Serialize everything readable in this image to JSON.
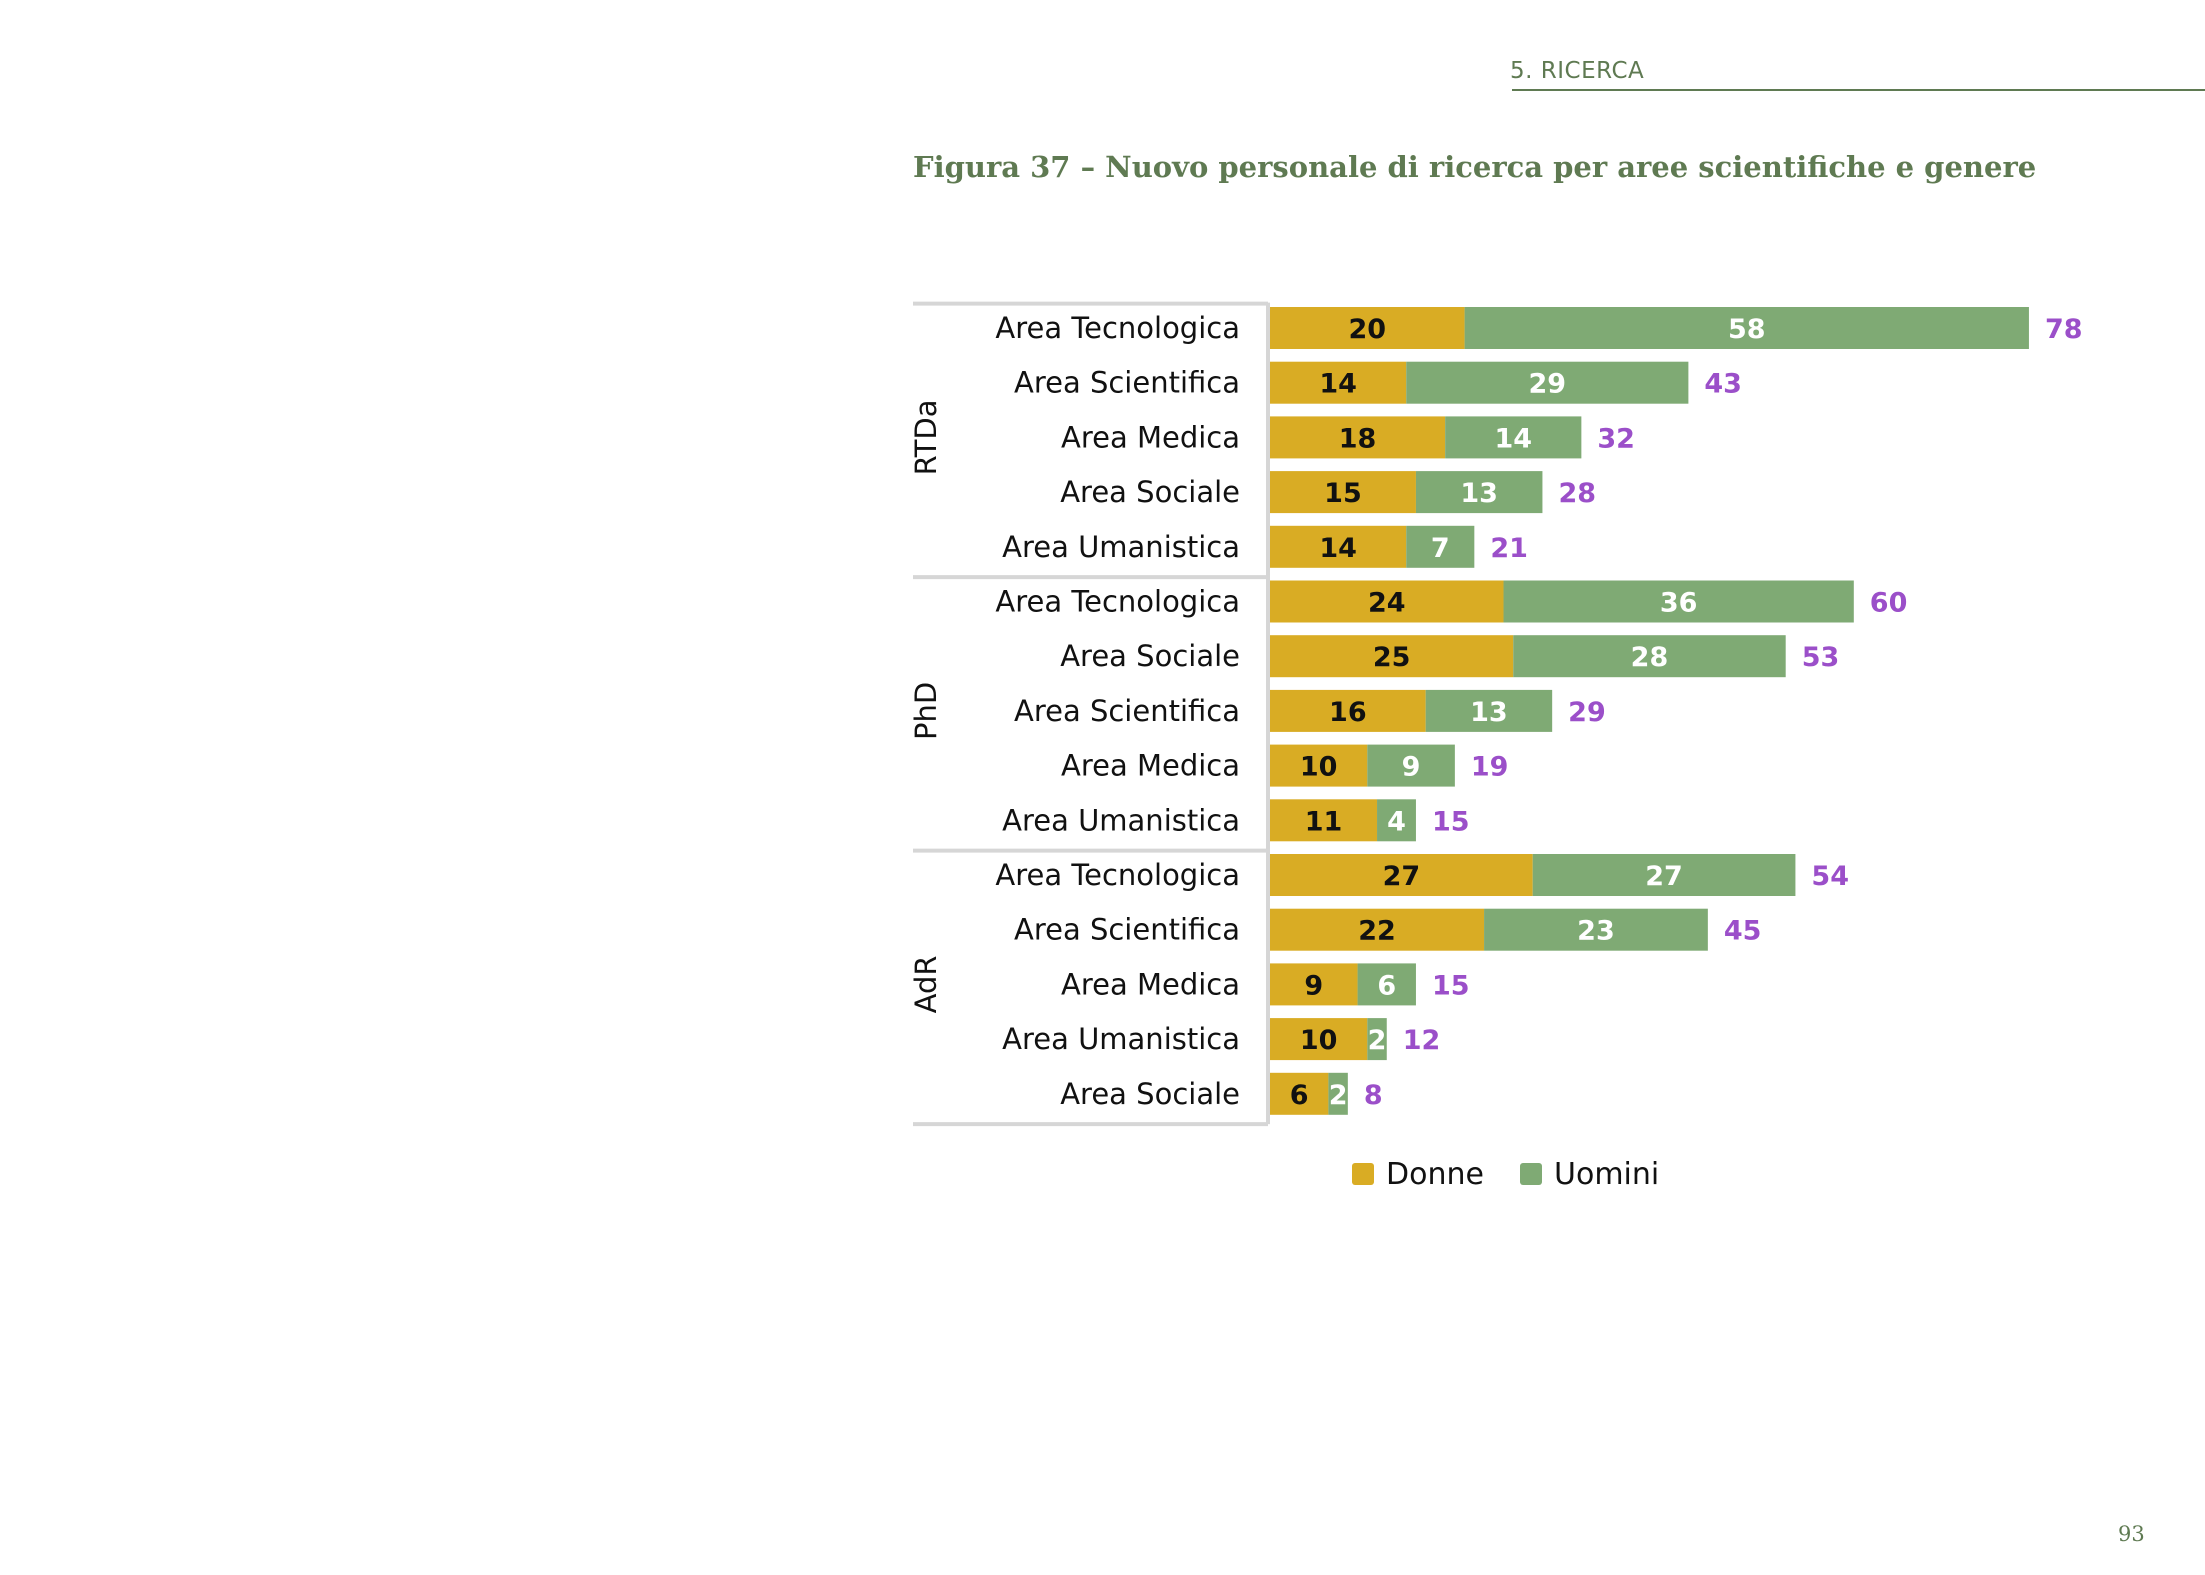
{
  "header": {
    "section": "5. RICERCA",
    "figure_title": "Figura 37 – Nuovo personale di ricerca per aree scientifiche e genere",
    "page_number": "93"
  },
  "colors": {
    "donne": "#d9ac24",
    "uomini": "#7faa74",
    "total": "#9b4fc9",
    "donne_label": "#111111",
    "uomini_label": "#ffffff",
    "separator": "#d6d6d6"
  },
  "chart_data": {
    "type": "bar",
    "orientation": "horizontal",
    "stacked": true,
    "title": "Figura 37 – Nuovo personale di ricerca per aree scientifiche e genere",
    "legend_position": "bottom",
    "groups": [
      {
        "name": "RTDa",
        "categories": [
          "Area Tecnologica",
          "Area Scientifica",
          "Area Medica",
          "Area Sociale",
          "Area Umanistica"
        ],
        "donne": [
          20,
          14,
          18,
          15,
          14
        ],
        "uomini": [
          58,
          29,
          14,
          13,
          7
        ],
        "totals": [
          78,
          43,
          32,
          28,
          21
        ]
      },
      {
        "name": "PhD",
        "categories": [
          "Area Tecnologica",
          "Area Sociale",
          "Area Scientifica",
          "Area Medica",
          "Area Umanistica"
        ],
        "donne": [
          24,
          25,
          16,
          10,
          11
        ],
        "uomini": [
          36,
          28,
          13,
          9,
          4
        ],
        "totals": [
          60,
          53,
          29,
          19,
          15
        ]
      },
      {
        "name": "AdR",
        "categories": [
          "Area Tecnologica",
          "Area Scientifica",
          "Area Medica",
          "Area Umanistica",
          "Area Sociale"
        ],
        "donne": [
          27,
          22,
          9,
          10,
          6
        ],
        "uomini": [
          27,
          23,
          6,
          2,
          2
        ],
        "totals": [
          54,
          45,
          15,
          12,
          8
        ]
      }
    ],
    "series": [
      {
        "name": "Donne",
        "key": "donne"
      },
      {
        "name": "Uomini",
        "key": "uomini"
      }
    ]
  }
}
